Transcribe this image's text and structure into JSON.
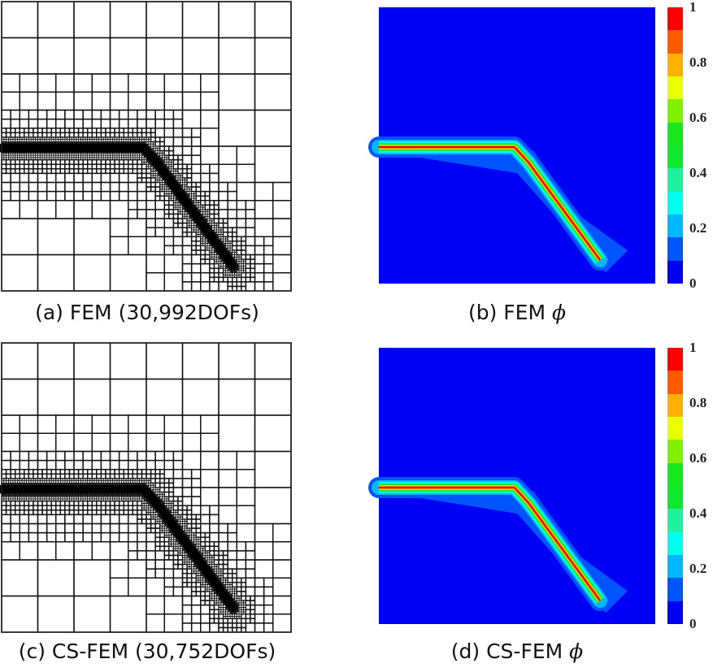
{
  "captions": {
    "a": "(a) FEM (30,992DOFs)",
    "b_prefix": "(b) FEM",
    "b_symbol": "ϕ",
    "c": "(c) CS-FEM (30,752DOFs)",
    "d_prefix": "(d) CS-FEM",
    "d_symbol": "ϕ"
  },
  "colorbar": {
    "ticks": [
      "1",
      "0.8",
      "0.6",
      "0.4",
      "0.2",
      "0"
    ],
    "range": [
      0,
      1
    ],
    "colors": [
      "#0000f5",
      "#0055ff",
      "#00b8ff",
      "#00ffee",
      "#20f0a0",
      "#10e830",
      "#18e820",
      "#80f000",
      "#e8ff00",
      "#ffb000",
      "#ff5a00",
      "#ff0000"
    ]
  }
}
